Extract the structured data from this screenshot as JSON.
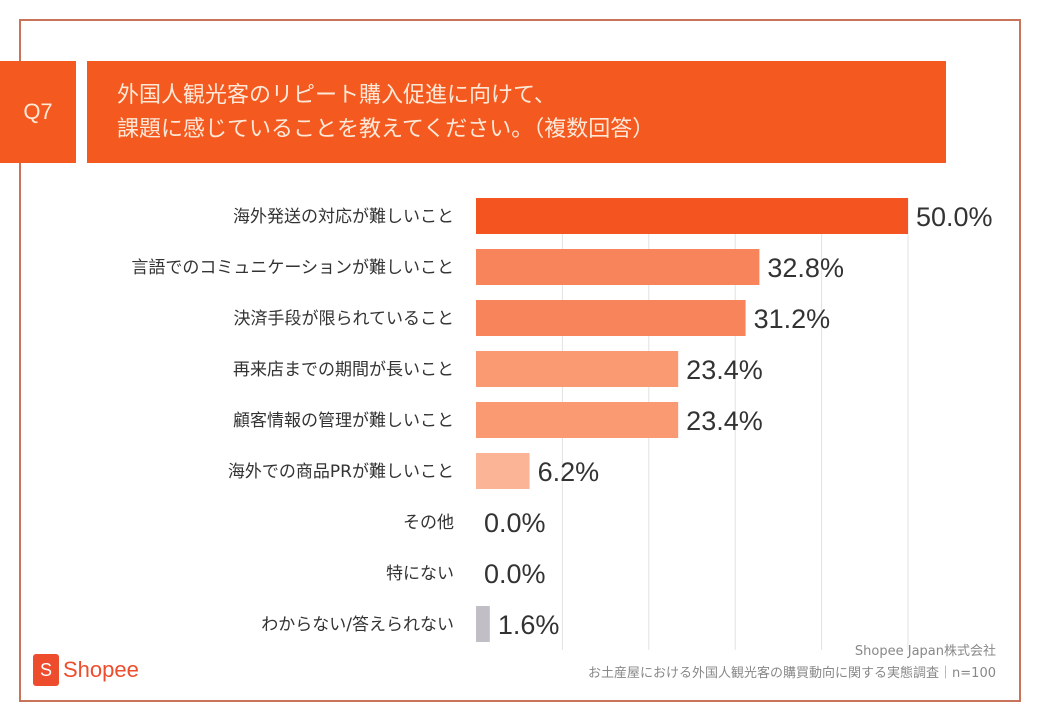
{
  "question_label": "Q7",
  "chart_data": {
    "type": "bar",
    "orientation": "horizontal",
    "title": "外国人観光客のリピート購入促進に向けて、\n課題に感じていることを教えてください。（複数回答）",
    "categories": [
      "海外発送の対応が難しいこと",
      "言語でのコミュニケーションが難しいこと",
      "決済手段が限られていること",
      "再来店までの期間が長いこと",
      "顧客情報の管理が難しいこと",
      "海外での商品PRが難しいこと",
      "その他",
      "特にない",
      "わからない/答えられない"
    ],
    "values": [
      50.0,
      32.8,
      31.2,
      23.4,
      23.4,
      6.2,
      0.0,
      0.0,
      1.6
    ],
    "value_labels": [
      "50.0%",
      "32.8%",
      "31.2%",
      "23.4%",
      "23.4%",
      "6.2%",
      "0.0%",
      "0.0%",
      "1.6%"
    ],
    "colors": [
      "#f4541f",
      "#f8845c",
      "#f8845c",
      "#f99a72",
      "#f99a72",
      "#fbb596",
      "#fbb596",
      "#fbb596",
      "#c2bec6"
    ],
    "xlim": [
      0,
      50
    ],
    "grid": true,
    "unit": "%"
  },
  "footer": {
    "company": "Shopee Japan株式会社",
    "survey": "お土産屋における外国人観光客の購買動向に関する実態調査｜n=100",
    "logo_text": "Shopee",
    "logo_letter": "S"
  }
}
